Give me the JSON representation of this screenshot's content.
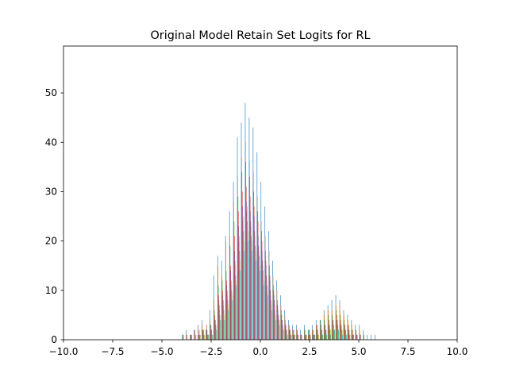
{
  "chart_data": {
    "type": "bar",
    "title": "Original Model Retain Set Logits for RL",
    "xlabel": "",
    "ylabel": "",
    "xlim": [
      -10,
      10
    ],
    "ylim": [
      0,
      59.5
    ],
    "x_ticks": [
      -10,
      -7.5,
      -5,
      -2.5,
      0,
      2.5,
      5,
      7.5,
      10
    ],
    "x_tick_labels": [
      "−10.0",
      "−7.5",
      "−5.0",
      "−2.5",
      "0.0",
      "2.5",
      "5.0",
      "7.5",
      "10.0"
    ],
    "y_ticks": [
      0,
      10,
      20,
      30,
      40,
      50
    ],
    "y_tick_labels": [
      "0",
      "10",
      "20",
      "30",
      "40",
      "50"
    ],
    "grid": false,
    "legend": "none",
    "series_colors": [
      "#1f77b4",
      "#ff7f0e",
      "#2ca02c",
      "#d62728",
      "#9467bd",
      "#8c564b",
      "#e377c2",
      "#7f7f7f",
      "#bcbd22",
      "#17becf"
    ],
    "bin_centers": [
      -3.9,
      -3.7,
      -3.5,
      -3.3,
      -3.1,
      -2.9,
      -2.7,
      -2.5,
      -2.3,
      -2.1,
      -1.9,
      -1.7,
      -1.5,
      -1.3,
      -1.1,
      -0.9,
      -0.7,
      -0.5,
      -0.3,
      -0.1,
      0.1,
      0.3,
      0.5,
      0.7,
      0.9,
      1.1,
      1.3,
      1.5,
      1.7,
      1.9,
      2.1,
      2.3,
      2.5,
      2.7,
      2.9,
      3.1,
      3.3,
      3.5,
      3.7,
      3.9,
      4.1,
      4.3,
      4.5,
      4.7,
      4.9,
      5.1,
      5.3,
      5.5,
      5.7,
      5.9
    ],
    "counts": [
      [
        1,
        2,
        1,
        2,
        3,
        4,
        2,
        6,
        13,
        17,
        16,
        21,
        26,
        32,
        41,
        44,
        48,
        45,
        43,
        38,
        32,
        27,
        22,
        16,
        12,
        9,
        6,
        4,
        3,
        3,
        2,
        3,
        2,
        3,
        4,
        4,
        6,
        7,
        8,
        9,
        8,
        6,
        5,
        4,
        3,
        3,
        2,
        1,
        1,
        1
      ],
      [
        0,
        1,
        0,
        1,
        2,
        3,
        1,
        4,
        8,
        15,
        13,
        20,
        21,
        28,
        33,
        37,
        40,
        36,
        34,
        29,
        24,
        21,
        18,
        13,
        10,
        7,
        5,
        3,
        2,
        2,
        1,
        2,
        1,
        2,
        3,
        3,
        5,
        6,
        6,
        7,
        6,
        5,
        4,
        3,
        2,
        2,
        1,
        0,
        0,
        0
      ],
      [
        1,
        0,
        1,
        0,
        1,
        2,
        2,
        3,
        6,
        11,
        12,
        14,
        19,
        24,
        29,
        34,
        36,
        33,
        30,
        26,
        22,
        18,
        15,
        11,
        8,
        6,
        4,
        3,
        2,
        1,
        1,
        2,
        2,
        1,
        2,
        4,
        4,
        5,
        5,
        6,
        5,
        4,
        3,
        2,
        2,
        1,
        1,
        0,
        0,
        0
      ],
      [
        0,
        1,
        1,
        2,
        1,
        2,
        3,
        2,
        5,
        9,
        10,
        12,
        15,
        21,
        26,
        30,
        31,
        29,
        27,
        24,
        20,
        16,
        13,
        10,
        7,
        5,
        3,
        2,
        1,
        2,
        1,
        1,
        1,
        2,
        3,
        2,
        3,
        4,
        4,
        5,
        4,
        3,
        3,
        2,
        1,
        1,
        0,
        0,
        0,
        0
      ],
      [
        1,
        0,
        0,
        1,
        2,
        1,
        2,
        3,
        4,
        8,
        9,
        11,
        14,
        18,
        23,
        27,
        28,
        26,
        25,
        21,
        18,
        15,
        12,
        9,
        6,
        4,
        3,
        2,
        2,
        1,
        1,
        1,
        2,
        1,
        2,
        3,
        3,
        3,
        4,
        4,
        3,
        3,
        2,
        1,
        1,
        1,
        0,
        0,
        0,
        0
      ],
      [
        0,
        0,
        1,
        0,
        1,
        2,
        1,
        2,
        4,
        7,
        8,
        10,
        12,
        16,
        20,
        24,
        26,
        24,
        22,
        19,
        16,
        13,
        10,
        8,
        5,
        4,
        2,
        2,
        1,
        1,
        0,
        1,
        1,
        1,
        2,
        2,
        2,
        3,
        3,
        4,
        3,
        2,
        2,
        1,
        1,
        0,
        0,
        0,
        0,
        0
      ],
      [
        0,
        0,
        0,
        1,
        0,
        1,
        1,
        2,
        3,
        6,
        7,
        9,
        11,
        15,
        21,
        25,
        27,
        23,
        21,
        18,
        15,
        12,
        9,
        7,
        5,
        3,
        2,
        1,
        1,
        1,
        0,
        1,
        1,
        1,
        1,
        2,
        2,
        2,
        3,
        3,
        2,
        2,
        1,
        1,
        1,
        0,
        0,
        0,
        0,
        0
      ],
      [
        0,
        0,
        0,
        0,
        1,
        1,
        1,
        1,
        3,
        5,
        6,
        8,
        10,
        13,
        18,
        22,
        24,
        21,
        19,
        17,
        14,
        11,
        8,
        6,
        4,
        3,
        2,
        1,
        1,
        0,
        0,
        1,
        0,
        1,
        1,
        1,
        2,
        2,
        2,
        3,
        2,
        2,
        1,
        1,
        0,
        0,
        0,
        0,
        0,
        0
      ],
      [
        0,
        0,
        0,
        0,
        0,
        1,
        1,
        1,
        2,
        4,
        5,
        7,
        9,
        12,
        16,
        20,
        22,
        20,
        18,
        15,
        12,
        10,
        7,
        5,
        4,
        2,
        1,
        1,
        1,
        0,
        0,
        0,
        1,
        0,
        1,
        1,
        1,
        2,
        2,
        2,
        2,
        1,
        1,
        0,
        0,
        0,
        0,
        0,
        0,
        0
      ],
      [
        0,
        0,
        0,
        0,
        0,
        0,
        1,
        1,
        2,
        4,
        4,
        6,
        8,
        11,
        14,
        18,
        20,
        18,
        16,
        14,
        11,
        9,
        6,
        4,
        3,
        2,
        1,
        1,
        0,
        0,
        0,
        0,
        0,
        1,
        0,
        1,
        1,
        1,
        2,
        2,
        1,
        1,
        0,
        0,
        0,
        0,
        0,
        0,
        0,
        0
      ]
    ]
  }
}
